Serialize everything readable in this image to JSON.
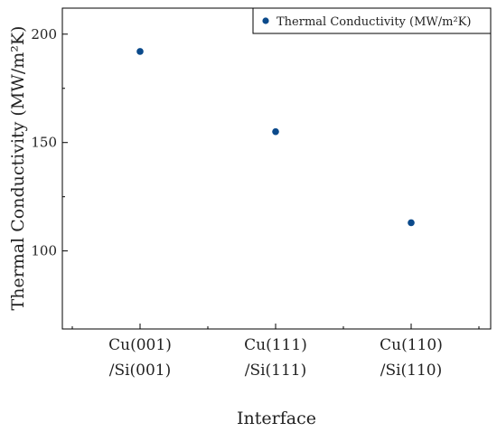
{
  "chart_data": {
    "type": "scatter",
    "categories": [
      "Cu(001)\n/Si(001)",
      "Cu(111)\n/Si(111)",
      "Cu(110)\n/Si(110)"
    ],
    "category_lines": [
      [
        "Cu(001)",
        "/Si(001)"
      ],
      [
        "Cu(111)",
        "/Si(111)"
      ],
      [
        "Cu(110)",
        "/Si(110)"
      ]
    ],
    "series": [
      {
        "name": "Thermal Conductivity (MW/m²K)",
        "values": [
          192,
          155,
          113
        ],
        "color": "#0b4a8b"
      }
    ],
    "xlabel": "Interface",
    "ylabel": "Thermal Conductivity (MW/m²K)",
    "ylim": [
      64,
      212
    ],
    "yticks": [
      100,
      150,
      200
    ],
    "ytick_labels": [
      "100",
      "150",
      "200"
    ],
    "grid": false,
    "legend_position": "top-right"
  }
}
